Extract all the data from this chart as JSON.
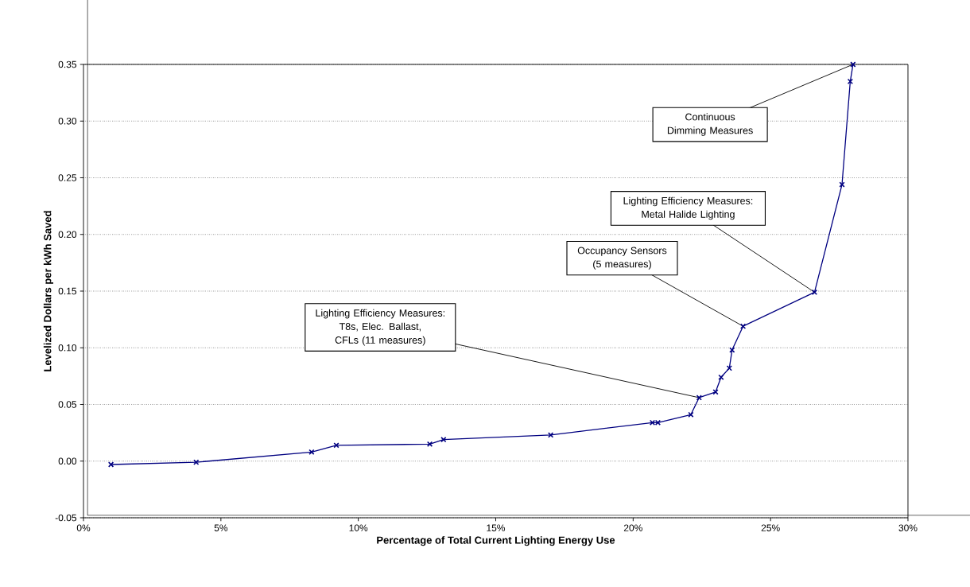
{
  "chart_data": {
    "type": "line",
    "xlabel": "Percentage of Total Current Lighting Energy Use",
    "ylabel": "Levelized Dollars per kWh Saved",
    "x": [
      1.0,
      4.1,
      8.3,
      9.2,
      12.6,
      13.1,
      17.0,
      20.7,
      20.9,
      22.1,
      22.4,
      23.0,
      23.2,
      23.5,
      23.6,
      24.0,
      26.6,
      27.6,
      27.9,
      28.0
    ],
    "series": [
      {
        "color": "#000080",
        "values": [
          -0.003,
          -0.001,
          0.008,
          0.014,
          0.015,
          0.019,
          0.023,
          0.034,
          0.034,
          0.041,
          0.056,
          0.061,
          0.074,
          0.082,
          0.098,
          0.119,
          0.149,
          0.244,
          0.335,
          0.35
        ]
      }
    ],
    "xlim": [
      0,
      30
    ],
    "xticks": [
      {
        "value": 0,
        "label": "0%"
      },
      {
        "value": 5,
        "label": "5%"
      },
      {
        "value": 10,
        "label": "10%"
      },
      {
        "value": 15,
        "label": "15%"
      },
      {
        "value": 20,
        "label": "20%"
      },
      {
        "value": 25,
        "label": "25%"
      },
      {
        "value": 30,
        "label": "30%"
      }
    ],
    "ylim": [
      -0.05,
      0.35
    ],
    "yticks": [
      -0.05,
      {
        "value": 0,
        "label": "0.00"
      },
      0.05,
      {
        "value": 0.1,
        "label": "0.10"
      },
      0.15,
      {
        "value": 0.2,
        "label": "0.20"
      },
      0.25,
      {
        "value": 0.3,
        "label": "0.30"
      },
      0.35
    ],
    "grid": "y",
    "marker": "cross",
    "line_style": "solid",
    "annotations": [
      {
        "text": "Lighting Efficiency Measures: T8s, Elec. Ballast, CFLs (11 measures)",
        "x": 22.4,
        "y": 0.056
      },
      {
        "text": "Occupancy Sensors (5 measures)",
        "x": 24.0,
        "y": 0.119
      },
      {
        "text": "Lighting Efficiency Measures: Metal Halide Lighting",
        "x": 26.6,
        "y": 0.149
      },
      {
        "text": "Continuous Dimming Measures",
        "x": 28.0,
        "y": 0.35
      }
    ]
  }
}
